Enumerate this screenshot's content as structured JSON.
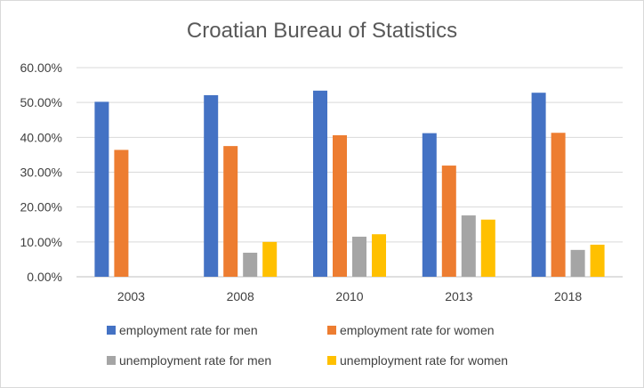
{
  "chart_data": {
    "type": "bar",
    "title": "Croatian Bureau of Statistics",
    "xlabel": "",
    "ylabel": "",
    "categories": [
      "2003",
      "2008",
      "2010",
      "2013",
      "2018"
    ],
    "series": [
      {
        "name": "employment rate for men",
        "color": "#4472C4",
        "values": [
          50.2,
          52.1,
          53.4,
          41.2,
          52.8
        ]
      },
      {
        "name": "employment rate for women",
        "color": "#ED7D31",
        "values": [
          36.4,
          37.5,
          40.6,
          31.9,
          41.3
        ]
      },
      {
        "name": "unemployment rate for men",
        "color": "#A5A5A5",
        "values": [
          null,
          6.9,
          11.5,
          17.6,
          7.7
        ]
      },
      {
        "name": "unemployment rate for women",
        "color": "#FFC000",
        "values": [
          null,
          10.0,
          12.2,
          16.4,
          9.2
        ]
      }
    ],
    "ylim": [
      0,
      60
    ],
    "yticks": [
      0,
      10,
      20,
      30,
      40,
      50,
      60
    ],
    "ytick_labels": [
      "0.00%",
      "10.00%",
      "20.00%",
      "30.00%",
      "40.00%",
      "50.00%",
      "60.00%"
    ],
    "grid": true,
    "legend": "bottom"
  }
}
